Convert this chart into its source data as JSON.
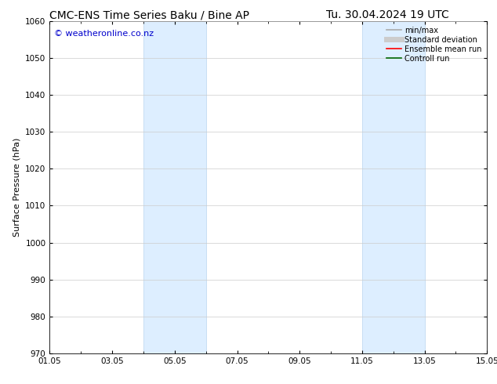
{
  "title_left": "CMC-ENS Time Series Baku / Bine AP",
  "title_right": "Tu. 30.04.2024 19 UTC",
  "ylabel": "Surface Pressure (hPa)",
  "ylim": [
    970,
    1060
  ],
  "yticks": [
    970,
    980,
    990,
    1000,
    1010,
    1020,
    1030,
    1040,
    1050,
    1060
  ],
  "xlim": [
    0,
    14
  ],
  "xtick_labels": [
    "01.05",
    "03.05",
    "05.05",
    "07.05",
    "09.05",
    "11.05",
    "13.05",
    "15.05"
  ],
  "xtick_positions": [
    0,
    2,
    4,
    6,
    8,
    10,
    12,
    14
  ],
  "shaded_regions": [
    {
      "start": 3.0,
      "end": 5.0
    },
    {
      "start": 10.0,
      "end": 12.0
    }
  ],
  "shaded_color": "#ddeeff",
  "shaded_edge_color": "#b8d4ee",
  "watermark_text": "© weatheronline.co.nz",
  "watermark_color": "#0000cc",
  "watermark_fontsize": 8,
  "legend_items": [
    {
      "label": "min/max",
      "color": "#aaaaaa",
      "lw": 1.2,
      "style": "solid"
    },
    {
      "label": "Standard deviation",
      "color": "#cccccc",
      "lw": 5,
      "style": "solid"
    },
    {
      "label": "Ensemble mean run",
      "color": "#ff0000",
      "lw": 1.2,
      "style": "solid"
    },
    {
      "label": "Controll run",
      "color": "#006600",
      "lw": 1.2,
      "style": "solid"
    }
  ],
  "bg_color": "#ffffff",
  "grid_color": "#cccccc",
  "title_fontsize": 10,
  "axis_fontsize": 8,
  "tick_fontsize": 7.5
}
